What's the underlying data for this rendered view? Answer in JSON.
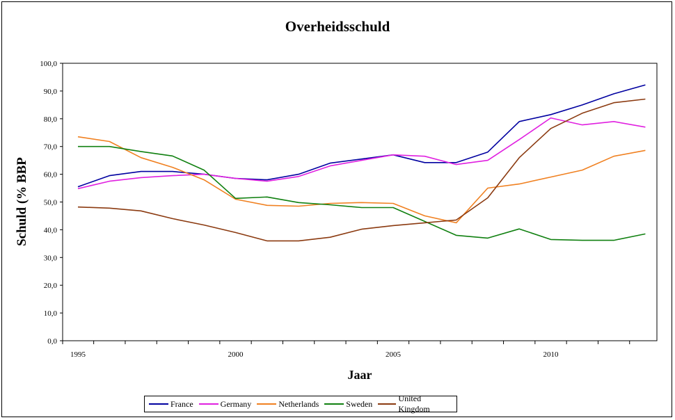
{
  "chart_data": {
    "type": "line",
    "title": "Overheidsschuld",
    "xlabel": "Jaar",
    "ylabel": "Schuld (% BBP",
    "x": [
      1995,
      1996,
      1997,
      1998,
      1999,
      2000,
      2001,
      2002,
      2003,
      2004,
      2005,
      2006,
      2007,
      2008,
      2009,
      2010,
      2011,
      2012,
      2013
    ],
    "xticklabels": [
      "1995",
      "2000",
      "2005",
      "2010"
    ],
    "xticklabel_values": [
      1995,
      2000,
      2005,
      2010
    ],
    "yticks": [
      "0,0",
      "10,0",
      "20,0",
      "30,0",
      "40,0",
      "50,0",
      "60,0",
      "70,0",
      "80,0",
      "90,0",
      "100,0"
    ],
    "ylim": [
      0,
      100
    ],
    "grid": false,
    "legend_position": "bottom",
    "series": [
      {
        "name": "France",
        "color": "#0000a0",
        "values": [
          55.5,
          59.5,
          61.0,
          61.0,
          60.0,
          58.5,
          58.0,
          60.0,
          64.0,
          65.5,
          67.0,
          64.2,
          64.2,
          68.0,
          79.0,
          81.5,
          85.0,
          89.0,
          92.2
        ]
      },
      {
        "name": "Germany",
        "color": "#e020e0",
        "values": [
          54.8,
          57.5,
          58.8,
          59.5,
          60.0,
          58.5,
          57.5,
          59.2,
          63.0,
          65.0,
          67.0,
          66.5,
          63.5,
          65.0,
          72.5,
          80.3,
          77.8,
          79.0,
          77.0
        ]
      },
      {
        "name": "Netherlands",
        "color": "#f08020",
        "values": [
          73.5,
          71.8,
          66.0,
          62.5,
          58.0,
          51.0,
          48.8,
          48.5,
          49.5,
          49.8,
          49.5,
          45.0,
          42.5,
          55.0,
          56.5,
          59.0,
          61.5,
          66.5,
          68.6
        ]
      },
      {
        "name": "Sweden",
        "color": "#108010",
        "values": [
          70.0,
          70.0,
          68.2,
          66.6,
          61.5,
          51.3,
          51.8,
          49.8,
          49.0,
          48.0,
          48.0,
          43.0,
          38.0,
          37.0,
          40.3,
          36.5,
          36.2,
          36.2,
          38.5
        ]
      },
      {
        "name": "United Kingdom",
        "color": "#8b3a10",
        "values": [
          48.2,
          47.8,
          46.8,
          44.0,
          41.7,
          39.0,
          36.0,
          36.0,
          37.3,
          40.2,
          41.5,
          42.5,
          43.5,
          51.5,
          66.0,
          76.5,
          82.0,
          85.8,
          87.1
        ]
      }
    ]
  }
}
